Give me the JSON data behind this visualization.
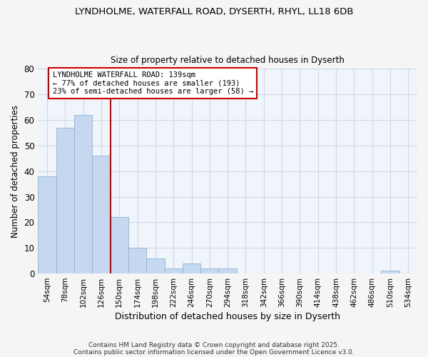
{
  "title1": "LYNDHOLME, WATERFALL ROAD, DYSERTH, RHYL, LL18 6DB",
  "title2": "Size of property relative to detached houses in Dyserth",
  "xlabel": "Distribution of detached houses by size in Dyserth",
  "ylabel": "Number of detached properties",
  "categories": [
    "54sqm",
    "78sqm",
    "102sqm",
    "126sqm",
    "150sqm",
    "174sqm",
    "198sqm",
    "222sqm",
    "246sqm",
    "270sqm",
    "294sqm",
    "318sqm",
    "342sqm",
    "366sqm",
    "390sqm",
    "414sqm",
    "438sqm",
    "462sqm",
    "486sqm",
    "510sqm",
    "534sqm"
  ],
  "values": [
    38,
    57,
    62,
    46,
    22,
    10,
    6,
    2,
    4,
    2,
    2,
    0,
    0,
    0,
    0,
    0,
    0,
    0,
    0,
    1,
    0
  ],
  "bar_color": "#c5d8f0",
  "bar_edge_color": "#8ab4d8",
  "red_line_x": 3.5,
  "annotation_text": "LYNDHOLME WATERFALL ROAD: 139sqm\n← 77% of detached houses are smaller (193)\n23% of semi-detached houses are larger (58) →",
  "ylim": [
    0,
    80
  ],
  "yticks": [
    0,
    10,
    20,
    30,
    40,
    50,
    60,
    70,
    80
  ],
  "fig_bg": "#f5f5f5",
  "plot_bg": "#f0f4fb",
  "grid_color": "#d0d8e8",
  "footer1": "Contains HM Land Registry data © Crown copyright and database right 2025.",
  "footer2": "Contains public sector information licensed under the Open Government Licence v3.0."
}
